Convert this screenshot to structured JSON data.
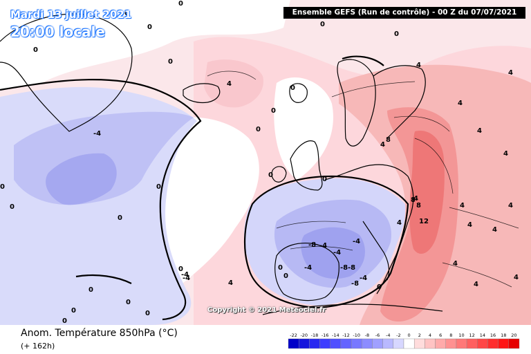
{
  "header": {
    "date": "Mardi 13 juillet 2021",
    "time": "20:00 locale",
    "run": "Ensemble GEFS  (Run de contrôle)  -  00 Z du 07/07/2021"
  },
  "copyright": "Copyright © 2021 Meteociel.fr",
  "parameter": "Anom. Température 850hPa (°C)",
  "lead_time": "(+ 162h)",
  "colors": {
    "cold_strong": "#8b8bf0",
    "cold_medium": "#b3b3f5",
    "cold_light": "#dadafb",
    "neutral": "#ffffff",
    "warm_light": "#fde0e0",
    "warm_medium": "#f9b9b9",
    "warm_strong": "#f28c8c",
    "warm_core": "#ea6a6a",
    "coast": "#000000"
  },
  "scale": {
    "ticks": [
      "-22",
      "-20",
      "-18",
      "-16",
      "-14",
      "-12",
      "-10",
      "-8",
      "-6",
      "-4",
      "-2",
      "0",
      "2",
      "4",
      "6",
      "8",
      "10",
      "12",
      "14",
      "16",
      "18",
      "20"
    ],
    "colors": [
      "#0000c8",
      "#1414dc",
      "#2828f0",
      "#3c3cff",
      "#5050ff",
      "#6464ff",
      "#7878ff",
      "#8c8cff",
      "#a0a0ff",
      "#b9b9ff",
      "#d7d7ff",
      "#ffffff",
      "#ffdcdc",
      "#ffc3c3",
      "#ffaaaa",
      "#ff9191",
      "#ff7878",
      "#ff5f5f",
      "#ff4646",
      "#ff2d2d",
      "#ff1414",
      "#e60000"
    ]
  },
  "contour_labels": [
    "0",
    "0",
    "0",
    "0",
    "0",
    "0",
    "0",
    "0",
    "0",
    "0",
    "0",
    "0",
    "0",
    "0",
    "0",
    "0",
    "0",
    "0",
    "0",
    "0",
    "0",
    "0",
    "0",
    "0",
    "0",
    "4",
    "4",
    "4",
    "4",
    "4",
    "4",
    "4",
    "4",
    "4",
    "4",
    "4",
    "4",
    "4",
    "4",
    "4",
    "4",
    "4",
    "-4",
    "-4",
    "-4",
    "-4",
    "-4",
    "-4",
    "-4",
    "-4",
    "-8",
    "-8",
    "-8",
    "-8",
    "8",
    "8",
    "8",
    "12"
  ]
}
